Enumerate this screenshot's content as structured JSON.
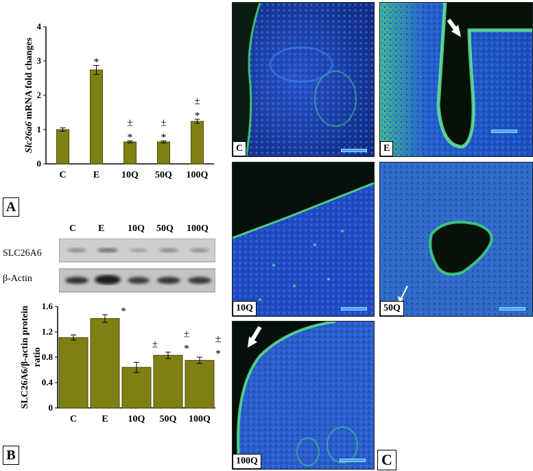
{
  "panel_labels": {
    "A": "A",
    "B": "B",
    "C": "C"
  },
  "chart_data": [
    {
      "type": "bar",
      "categories": [
        "C",
        "E",
        "10Q",
        "50Q",
        "100Q"
      ],
      "values": [
        1.0,
        2.74,
        0.64,
        0.64,
        1.24
      ],
      "errors": [
        0.05,
        0.13,
        0.03,
        0.03,
        0.06
      ],
      "annotations": [
        "",
        "*",
        "±\n*",
        "±\n*",
        "±\n*"
      ],
      "ylabel_italic": "Slc26a6",
      "ylabel_rest": " mRNA fold changes",
      "ylim": [
        0,
        4
      ],
      "yticks": [
        "0",
        "1",
        "2",
        "3",
        "4"
      ],
      "bar_color": "#7f7f14"
    },
    {
      "type": "bar",
      "categories": [
        "C",
        "E",
        "10Q",
        "50Q",
        "100Q"
      ],
      "values": [
        1.11,
        1.41,
        0.64,
        0.83,
        0.75
      ],
      "errors": [
        0.04,
        0.06,
        0.08,
        0.05,
        0.05
      ],
      "annotations": [
        "",
        "*",
        "±\n*",
        "±\n*",
        "±\n*"
      ],
      "ylabel": "SLC26A6/β-actin protein ratio",
      "ylim": [
        0,
        1.6
      ],
      "yticks": [
        "0",
        "0.4",
        "0.8",
        "1.2",
        "1.6"
      ],
      "bar_color": "#7f7f14"
    }
  ],
  "blot": {
    "lanes": [
      "C",
      "E",
      "10Q",
      "50Q",
      "100Q"
    ],
    "rows": [
      "SLC26A6",
      "β-Actin"
    ]
  },
  "micrographs": [
    "C",
    "E",
    "10Q",
    "50Q",
    "100Q"
  ],
  "colors": {
    "nuclei": "#1d3fb0",
    "stain": "#3ee07a",
    "background": "#0a1a10"
  }
}
